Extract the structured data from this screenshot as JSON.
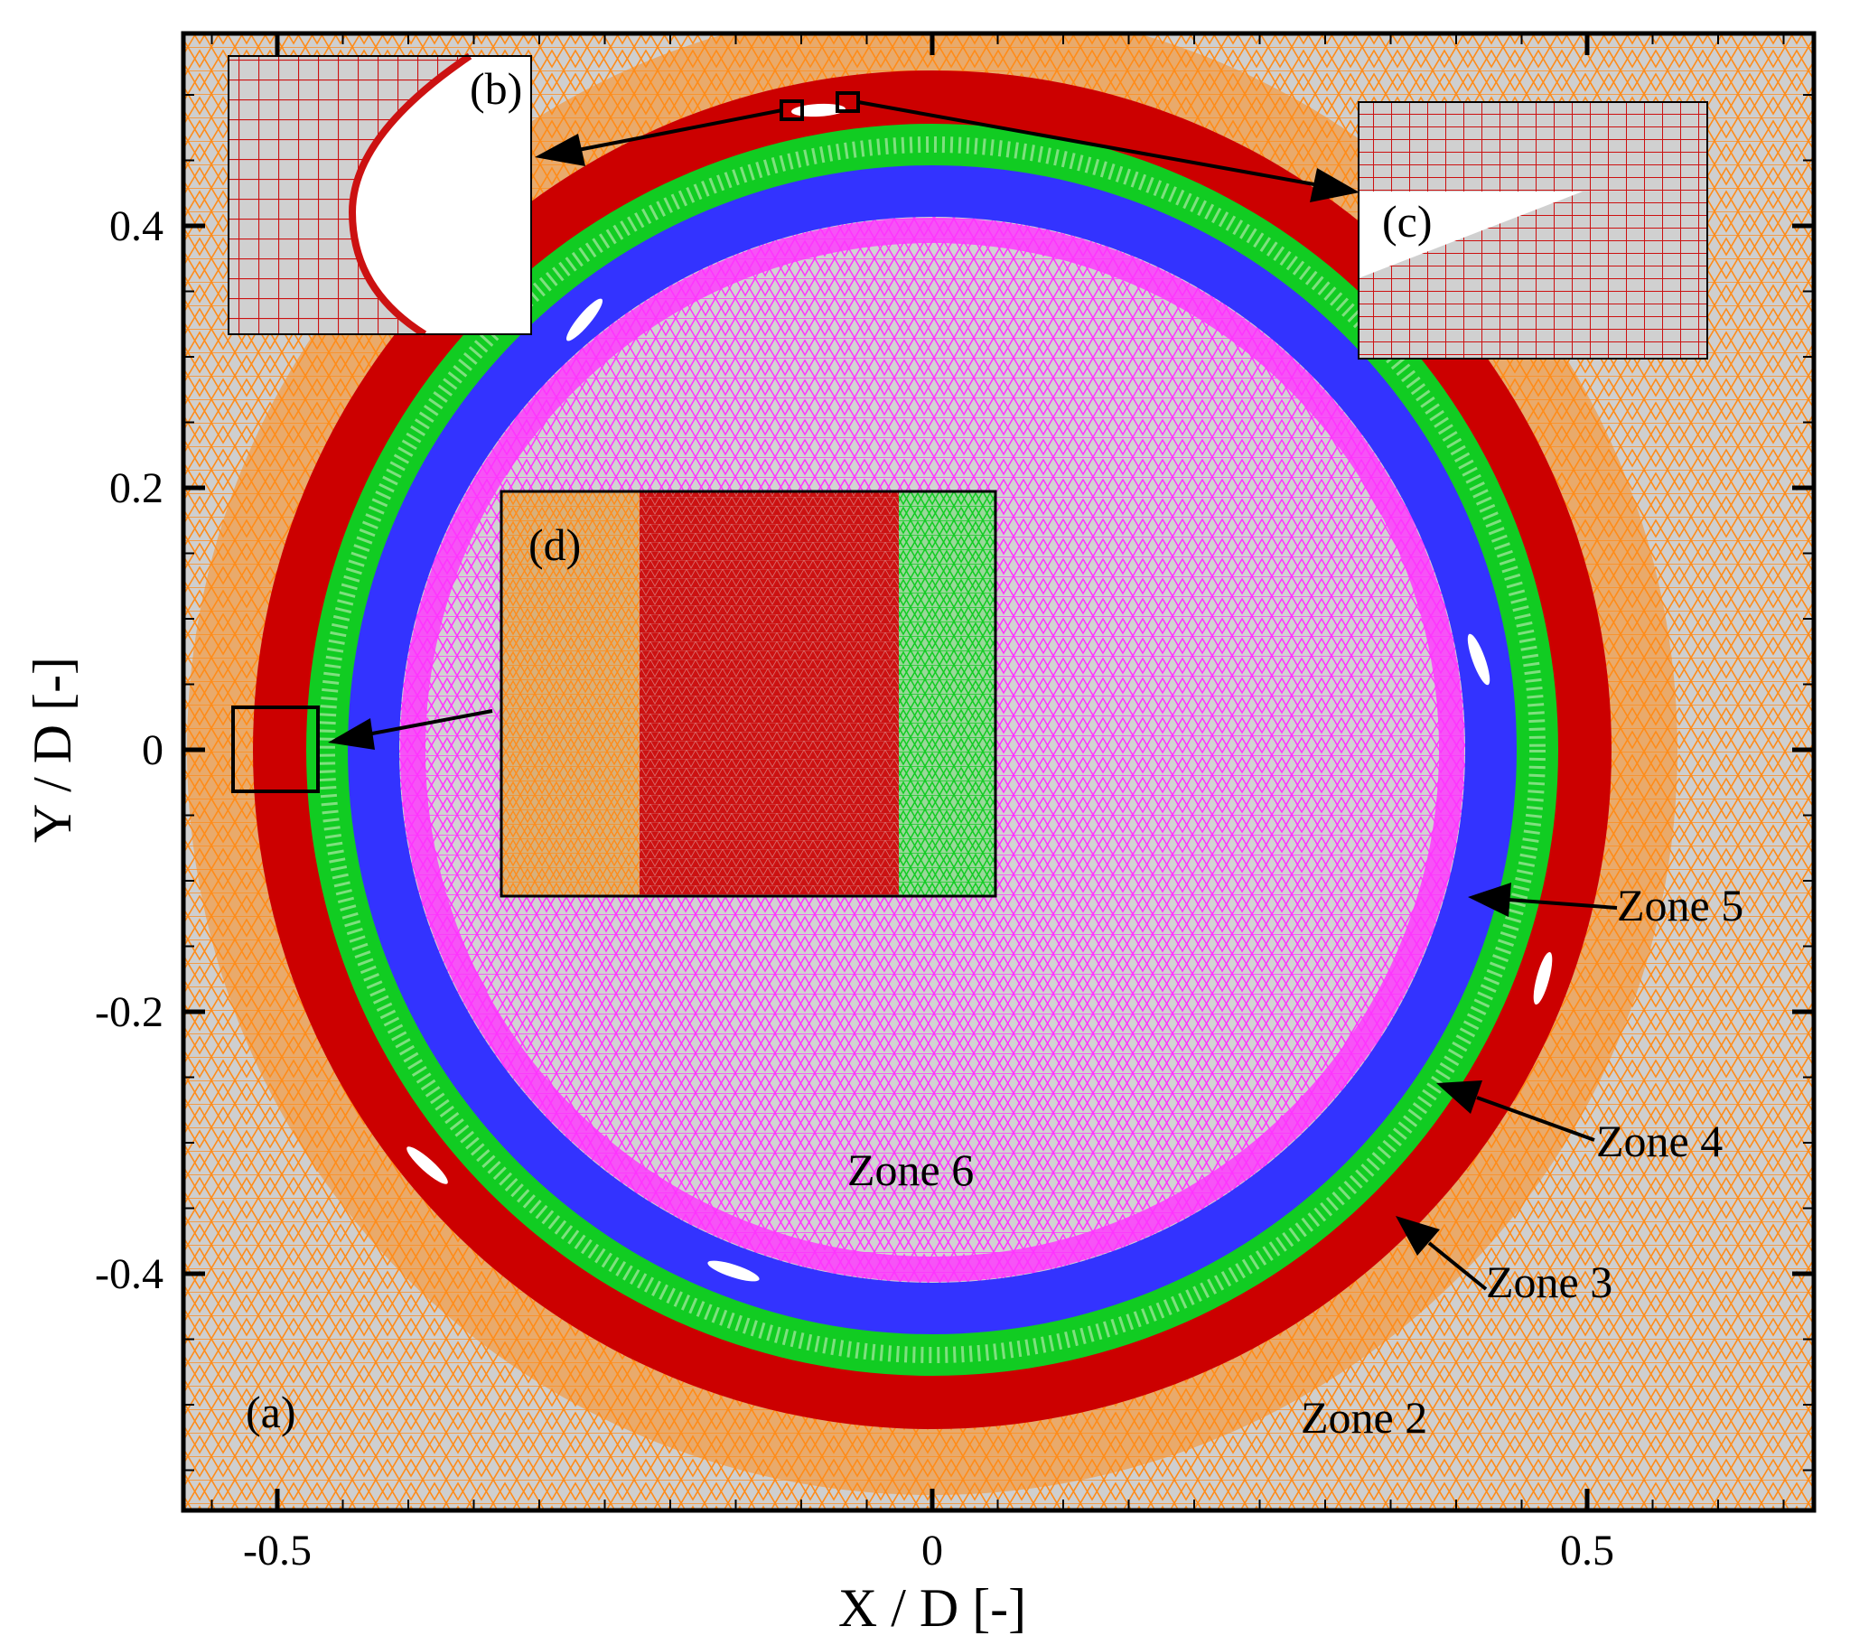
{
  "colors": {
    "background": "#cfcfcf",
    "zone2_mesh": "#ff8c1a",
    "zone3": "#cc0000",
    "zone4": "#11cc22",
    "zone5": "#3333ff",
    "zone6_mesh": "#ff33ff",
    "inset_mesh": "#cc1111",
    "blade": "#ffffff"
  },
  "axes": {
    "xlabel": "X / D [-]",
    "ylabel": "Y / D [-]",
    "xlim": [
      -0.57,
      0.67
    ],
    "ylim": [
      -0.58,
      0.55
    ],
    "x_ticks": [
      {
        "value": -0.5,
        "label": "-0.5"
      },
      {
        "value": 0,
        "label": "0"
      },
      {
        "value": 0.5,
        "label": "0.5"
      }
    ],
    "y_ticks": [
      {
        "value": 0.4,
        "label": "0.4"
      },
      {
        "value": 0.2,
        "label": "0.2"
      },
      {
        "value": 0,
        "label": "0"
      },
      {
        "value": -0.2,
        "label": "-0.2"
      },
      {
        "value": -0.4,
        "label": "-0.4"
      }
    ]
  },
  "panels": {
    "a": "(a)",
    "b": "(b)",
    "c": "(c)",
    "d": "(d)"
  },
  "zones": {
    "zone2": "Zone 2",
    "zone3": "Zone 3",
    "zone4": "Zone 4",
    "zone5": "Zone 5",
    "zone6": "Zone 6"
  },
  "rings": [
    {
      "zone": "Zone 3",
      "outer_r": 0.52,
      "inner_r": 0.48
    },
    {
      "zone": "Zone 4",
      "outer_r": 0.48,
      "inner_r": 0.445
    },
    {
      "zone": "Zone 5",
      "outer_r": 0.445,
      "inner_r": 0.405
    },
    {
      "zone": "Zone 6",
      "outer_r": 0.405,
      "inner_r": 0
    }
  ]
}
